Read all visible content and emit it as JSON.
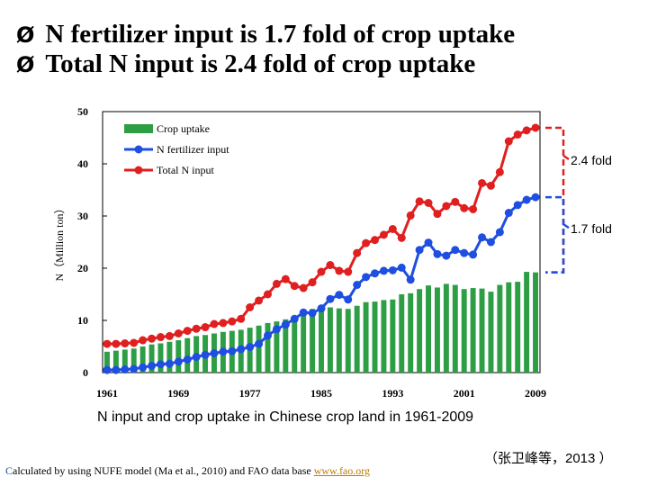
{
  "heading": {
    "bullet_glyph": "Ø",
    "line1": "N fertilizer input is 1.7 fold of crop uptake",
    "line2": "Total N input is 2.4 fold of crop uptake"
  },
  "caption": "N input and crop uptake in Chinese crop land in 1961-2009",
  "citation": "（张卫峰等，2013 ）",
  "footnote": {
    "first_letter": "C",
    "text": "alculated by using NUFE model (Ma et al., 2010) and FAO data base",
    "link": "www.fao.org"
  },
  "chart_data": {
    "type": "bar",
    "ylabel": "N（Million ton）",
    "ylim": [
      0,
      50
    ],
    "yticks": [
      0,
      10,
      20,
      30,
      40,
      50
    ],
    "xtick_labels": [
      "1961",
      "1969",
      "1977",
      "1985",
      "1993",
      "2001",
      "2009"
    ],
    "x": [
      1961,
      1962,
      1963,
      1964,
      1965,
      1966,
      1967,
      1968,
      1969,
      1970,
      1971,
      1972,
      1973,
      1974,
      1975,
      1976,
      1977,
      1978,
      1979,
      1980,
      1981,
      1982,
      1983,
      1984,
      1985,
      1986,
      1987,
      1988,
      1989,
      1990,
      1991,
      1992,
      1993,
      1994,
      1995,
      1996,
      1997,
      1998,
      1999,
      2000,
      2001,
      2002,
      2003,
      2004,
      2005,
      2006,
      2007,
      2008,
      2009
    ],
    "legend_position": "top-left",
    "series": [
      {
        "name": "Crop uptake",
        "kind": "bar",
        "color": "#2e9e45",
        "values": [
          4,
          4.2,
          4.4,
          4.6,
          5,
          5.4,
          5.6,
          5.9,
          6.2,
          6.6,
          7,
          7.2,
          7.5,
          7.8,
          8,
          8.2,
          8.6,
          9,
          9.5,
          9.8,
          10.2,
          10.8,
          11.5,
          12.2,
          12.2,
          12.5,
          12.3,
          12.2,
          12.8,
          13.5,
          13.6,
          13.9,
          14,
          15,
          15.2,
          16,
          16.7,
          16.3,
          17,
          16.8,
          16,
          16.2,
          16.1,
          15.5,
          16.8,
          17.3,
          17.4,
          19.3,
          19.2
        ]
      },
      {
        "name": "N fertilizer input",
        "kind": "line",
        "color": "#1f4fe0",
        "values": [
          0.5,
          0.5,
          0.6,
          0.7,
          1,
          1.3,
          1.6,
          1.7,
          2.1,
          2.5,
          3,
          3.4,
          3.7,
          4,
          4.1,
          4.5,
          4.9,
          5.5,
          7.1,
          8.3,
          9.2,
          10.3,
          11.5,
          11.4,
          12.3,
          14.1,
          14.9,
          14,
          16.8,
          18.3,
          19,
          19.5,
          19.6,
          20.1,
          17.8,
          23.5,
          24.9,
          22.7,
          22.4,
          23.5,
          22.9,
          22.6,
          25.9,
          25,
          26.9,
          30.6,
          32.1,
          33.1,
          33.6
        ]
      },
      {
        "name": "Total N input",
        "kind": "line",
        "color": "#e02020",
        "values": [
          5.5,
          5.5,
          5.6,
          5.7,
          6.2,
          6.5,
          6.8,
          7,
          7.5,
          8,
          8.4,
          8.7,
          9.3,
          9.5,
          9.8,
          10.3,
          12.5,
          13.8,
          15,
          17,
          17.9,
          16.6,
          16.2,
          17.3,
          19.3,
          20.6,
          19.5,
          19.3,
          22.9,
          24.8,
          25.4,
          26.4,
          27.5,
          25.8,
          30.1,
          32.8,
          32.5,
          30.4,
          31.9,
          32.7,
          31.5,
          31.3,
          36.3,
          35.8,
          38.4,
          44.3,
          45.6,
          46.4,
          46.9
        ]
      }
    ],
    "annotations": [
      {
        "label": "2.4 fold",
        "from_series": "Total N input",
        "color": "#e02020"
      },
      {
        "label": "1.7 fold",
        "from_series": "N fertilizer input",
        "color": "#1f4fe0"
      }
    ]
  }
}
